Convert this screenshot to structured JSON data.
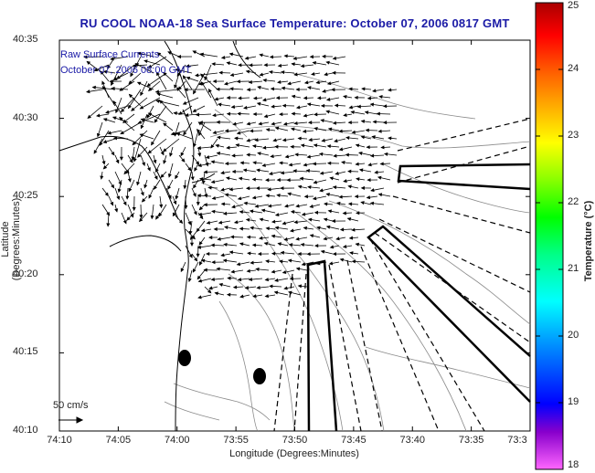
{
  "title": "RU COOL  NOAA-18  Sea Surface Temperature:  October 07, 2006 0817 GMT",
  "annotations": {
    "raw_label": "Raw Surface Currents",
    "time_label": "October 07, 2006 08:00 GMT",
    "scale_label": "50 cm/s"
  },
  "axes": {
    "xlabel": "Longitude (Degrees:Minutes)",
    "ylabel": "Latitude (Degrees:Minutes)",
    "x_ticks": [
      "74:10",
      "74:05",
      "74:00",
      "73:55",
      "73:50",
      "73:45",
      "73:40",
      "73:35",
      "73:3"
    ],
    "y_ticks": [
      "40:35",
      "40:30",
      "40:25",
      "40:20",
      "40:15",
      "40:10"
    ]
  },
  "colorbar": {
    "title": "Temperature (°C)",
    "ticks": [
      "25",
      "24",
      "23",
      "22",
      "21",
      "20",
      "19",
      "18"
    ],
    "range": [
      18,
      25
    ],
    "colors": [
      "#ff66ff",
      "#8800cc",
      "#0000ff",
      "#0088ff",
      "#00ffff",
      "#00ff88",
      "#00ff00",
      "#88ff00",
      "#ffff00",
      "#ffaa00",
      "#ff5500",
      "#ff0000",
      "#aa0000"
    ]
  },
  "map": {
    "background": "#ffffff",
    "coastline_color": "#000000",
    "bathymetry_color": "#888888",
    "vector_color": "#000000"
  }
}
